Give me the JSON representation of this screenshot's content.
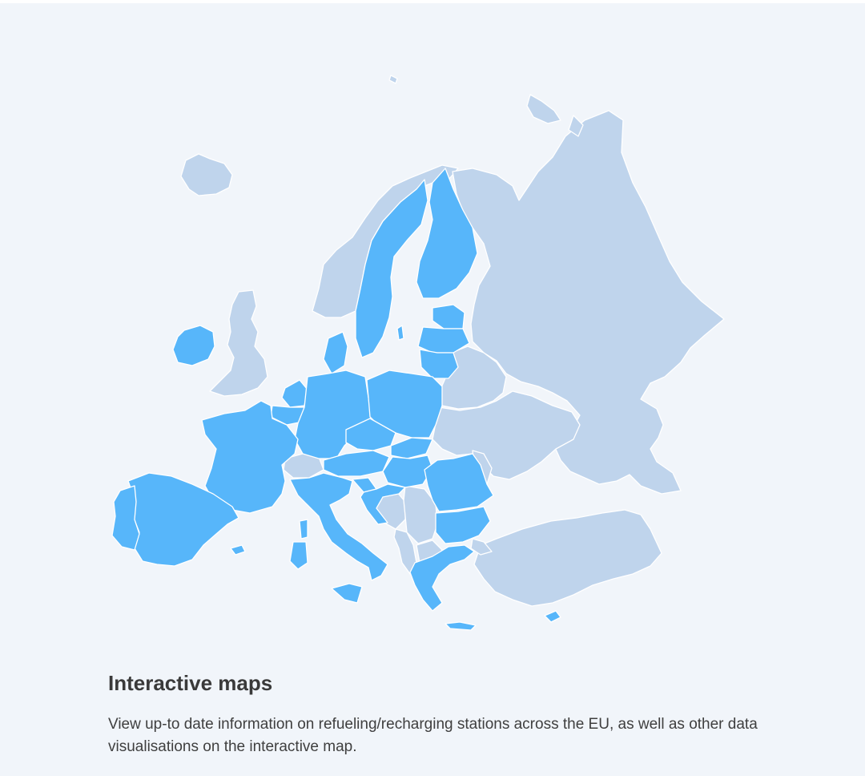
{
  "colors": {
    "eu_fill": "#57b6fa",
    "non_eu_fill": "#bfd4ec",
    "background": "#f1f5fa"
  },
  "map": {
    "icon": "europe-map-illustration"
  },
  "section": {
    "title": "Interactive maps",
    "description": "View up-to date information on refueling/recharging stations across the EU, as well as other data visualisations on the interactive map."
  }
}
